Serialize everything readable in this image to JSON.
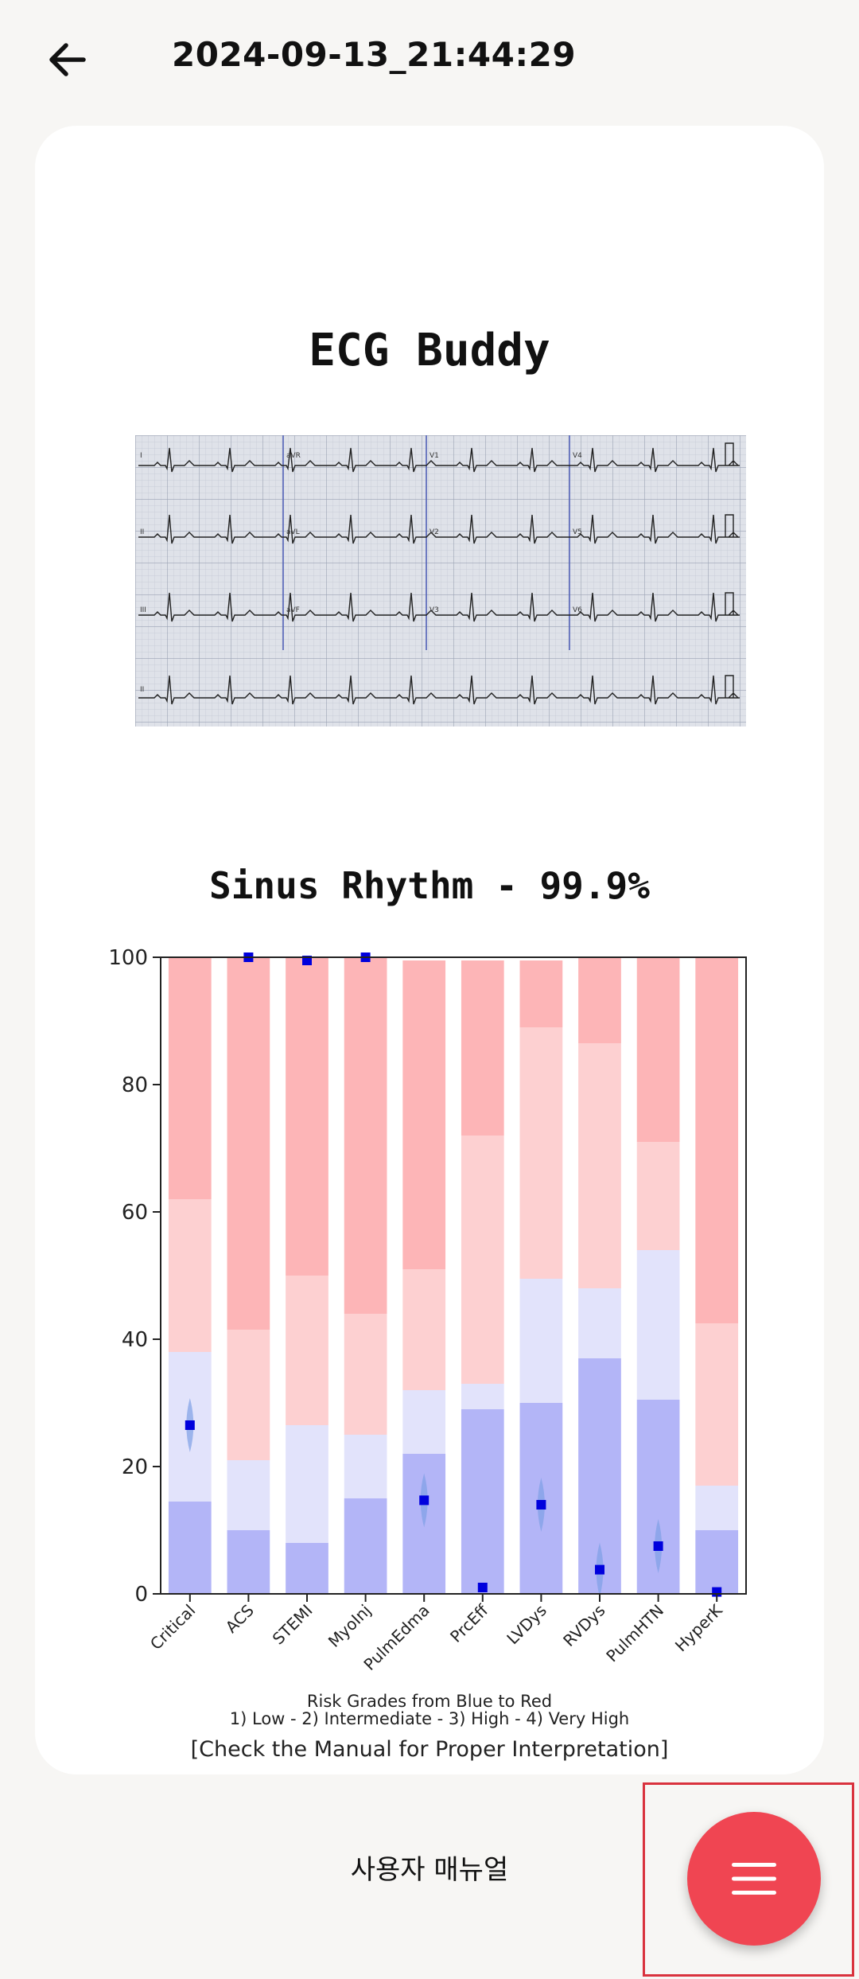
{
  "header": {
    "title": "2024-09-13_21:44:29",
    "back_icon": "arrow-left-icon"
  },
  "card": {
    "app_title": "ECG Buddy",
    "rhythm": "Sinus Rhythm - 99.9%",
    "legend_line1": "Risk Grades from Blue to Red",
    "legend_line2": "1) Low - 2) Intermediate - 3) High - 4) Very High",
    "manual_note": "[Check the Manual for Proper Interpretation]"
  },
  "ecg_leads": [
    "I",
    "aVR",
    "V1",
    "V4",
    "II",
    "aVL",
    "V2",
    "V5",
    "III",
    "aVF",
    "V3",
    "V6",
    "II"
  ],
  "chart_data": {
    "type": "bar",
    "categories": [
      "Critical",
      "ACS",
      "STEMI",
      "MyoInj",
      "PulmEdma",
      "PrcEff",
      "LVDys",
      "RVDys",
      "PulmHTN",
      "HyperK"
    ],
    "ylim": [
      0,
      100
    ],
    "yticks": [
      0,
      20,
      40,
      60,
      80,
      100
    ],
    "series": [
      {
        "values": [
          14.5,
          10,
          8,
          15,
          22,
          29,
          30,
          37,
          30.5,
          10
        ]
      },
      {
        "values": [
          23.5,
          11,
          18.5,
          10,
          10,
          4,
          19.5,
          11,
          23.5,
          7
        ]
      },
      {
        "values": [
          24,
          20.5,
          23.5,
          19,
          19,
          39,
          39.5,
          38.5,
          17,
          25.5
        ]
      },
      {
        "values": [
          38,
          58.5,
          50,
          56,
          48.5,
          27.5,
          10.5,
          13.5,
          29,
          57.5
        ]
      }
    ],
    "point_values": [
      26.5,
      100,
      99.5,
      100,
      14.7,
      1,
      14,
      3.8,
      7.5,
      0.3
    ],
    "band_colors": [
      "#b3b5f7",
      "#e2e3fb",
      "#fdd0d1",
      "#fdb5b7"
    ],
    "point_color": "#0000dd",
    "spread_color": "#7f9fe6"
  },
  "footer": {
    "user_manual": "사용자 매뉴얼"
  },
  "fab": {
    "icon": "hamburger-menu-icon",
    "color": "#f04552"
  }
}
